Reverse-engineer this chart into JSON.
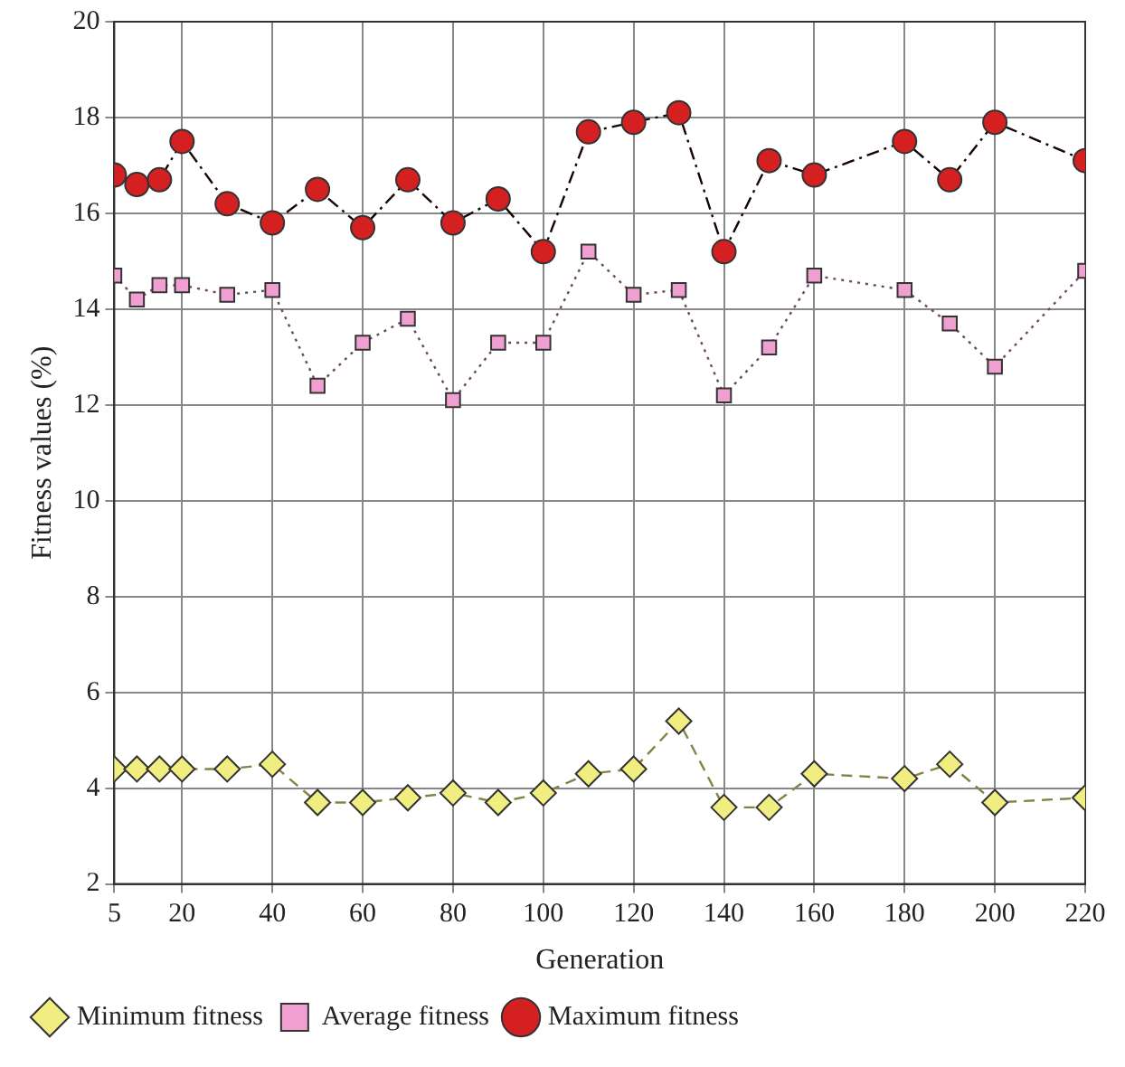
{
  "chart_data": {
    "type": "line",
    "xlabel": "Generation",
    "ylabel": "Fitness values (%)",
    "x": [
      5,
      10,
      15,
      20,
      30,
      40,
      50,
      60,
      70,
      80,
      90,
      100,
      110,
      120,
      130,
      140,
      150,
      160,
      180,
      190,
      200,
      220
    ],
    "xlim": [
      5,
      220
    ],
    "xticks": [
      5,
      20,
      40,
      60,
      80,
      100,
      120,
      140,
      160,
      180,
      200,
      220
    ],
    "ylim": [
      2,
      20
    ],
    "yticks": [
      2,
      4,
      6,
      8,
      10,
      12,
      14,
      16,
      18,
      20
    ],
    "grid": true,
    "legend": "bottom left",
    "series": [
      {
        "name": "Minimum fitness",
        "color": "#f0ee80",
        "marker": "diamond",
        "line_style": "dashed",
        "values": [
          4.4,
          4.4,
          4.4,
          4.4,
          4.4,
          4.5,
          3.7,
          3.7,
          3.8,
          3.9,
          3.7,
          3.9,
          4.3,
          4.4,
          5.4,
          3.6,
          3.6,
          4.3,
          4.2,
          4.5,
          3.7,
          3.8
        ]
      },
      {
        "name": "Average fitness",
        "color": "#f0a0d0",
        "marker": "square",
        "line_style": "dotted",
        "values": [
          14.7,
          14.2,
          14.5,
          14.5,
          14.3,
          14.4,
          12.4,
          13.3,
          13.8,
          12.1,
          13.3,
          13.3,
          15.2,
          14.3,
          14.4,
          12.2,
          13.2,
          14.7,
          14.4,
          13.7,
          12.8,
          14.8
        ]
      },
      {
        "name": "Maximum fitness",
        "color": "#d42020",
        "marker": "circle",
        "line_style": "dashdot",
        "values": [
          16.8,
          16.6,
          16.7,
          17.5,
          16.2,
          15.8,
          16.5,
          15.7,
          16.7,
          15.8,
          16.3,
          15.2,
          17.7,
          17.9,
          18.1,
          15.2,
          17.1,
          16.8,
          17.5,
          16.7,
          17.9,
          17.1
        ]
      }
    ]
  }
}
